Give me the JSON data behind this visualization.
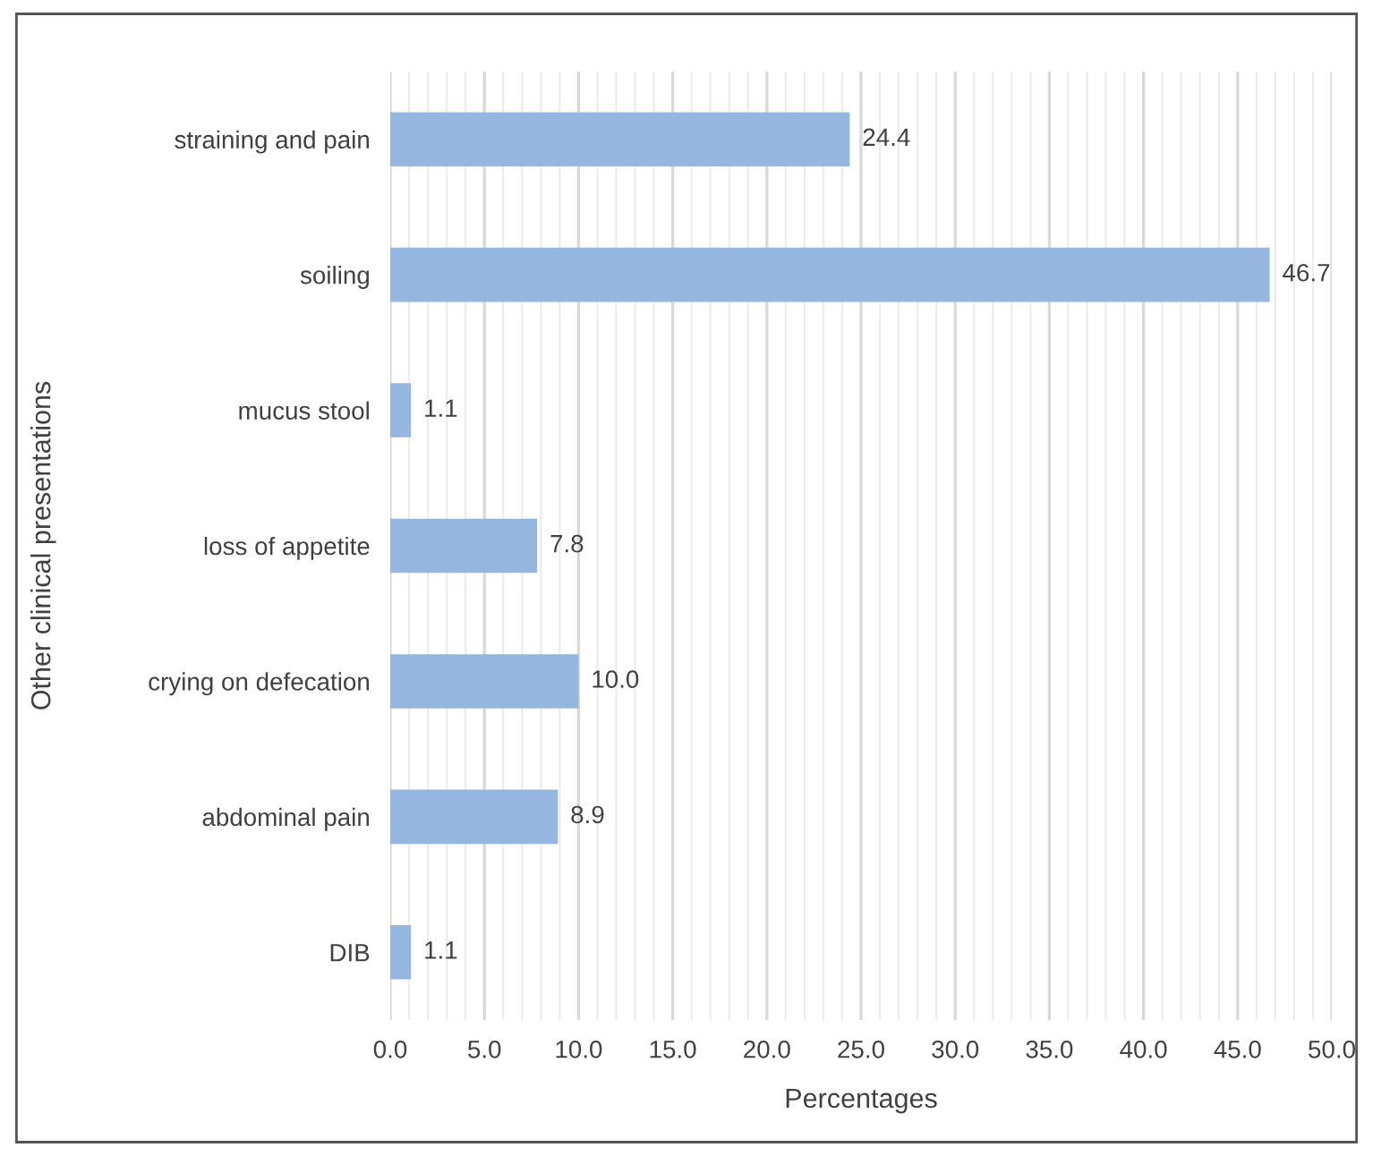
{
  "chart_data": {
    "type": "bar",
    "orientation": "horizontal",
    "xlabel": "Percentages",
    "ylabel": "Other clinical presentations",
    "categories": [
      "straining and pain",
      "soiling",
      "mucus stool",
      "loss of appetite",
      "crying on defecation",
      "abdominal pain",
      "DIB"
    ],
    "values": [
      24.4,
      46.7,
      1.1,
      7.8,
      10.0,
      8.9,
      1.1
    ],
    "value_labels": [
      "24.4",
      "46.7",
      "1.1",
      "7.8",
      "10.0",
      "8.9",
      "1.1"
    ],
    "color": "#95b7df",
    "xlim": [
      0,
      50
    ],
    "xticks": [
      {
        "value": 0,
        "label": "0.0"
      },
      {
        "value": 1,
        "label": null
      },
      {
        "value": 2,
        "label": null
      },
      {
        "value": 3,
        "label": null
      },
      {
        "value": 4,
        "label": null
      },
      {
        "value": 5,
        "label": "5.0"
      },
      {
        "value": 6,
        "label": null
      },
      {
        "value": 7,
        "label": null
      },
      {
        "value": 8,
        "label": null
      },
      {
        "value": 9,
        "label": null
      },
      {
        "value": 10,
        "label": "10.0"
      },
      {
        "value": 11,
        "label": null
      },
      {
        "value": 12,
        "label": null
      },
      {
        "value": 13,
        "label": null
      },
      {
        "value": 14,
        "label": null
      },
      {
        "value": 15,
        "label": "15.0"
      },
      {
        "value": 16,
        "label": null
      },
      {
        "value": 17,
        "label": null
      },
      {
        "value": 18,
        "label": null
      },
      {
        "value": 19,
        "label": null
      },
      {
        "value": 20,
        "label": "20.0"
      },
      {
        "value": 21,
        "label": null
      },
      {
        "value": 22,
        "label": null
      },
      {
        "value": 23,
        "label": null
      },
      {
        "value": 24,
        "label": null
      },
      {
        "value": 25,
        "label": "25.0"
      },
      {
        "value": 26,
        "label": null
      },
      {
        "value": 27,
        "label": null
      },
      {
        "value": 28,
        "label": null
      },
      {
        "value": 29,
        "label": null
      },
      {
        "value": 30,
        "label": "30.0"
      },
      {
        "value": 31,
        "label": null
      },
      {
        "value": 32,
        "label": null
      },
      {
        "value": 33,
        "label": null
      },
      {
        "value": 34,
        "label": null
      },
      {
        "value": 35,
        "label": "35.0"
      },
      {
        "value": 36,
        "label": null
      },
      {
        "value": 37,
        "label": null
      },
      {
        "value": 38,
        "label": null
      },
      {
        "value": 39,
        "label": null
      },
      {
        "value": 40,
        "label": "40.0"
      },
      {
        "value": 41,
        "label": null
      },
      {
        "value": 42,
        "label": null
      },
      {
        "value": 43,
        "label": null
      },
      {
        "value": 44,
        "label": null
      },
      {
        "value": 45,
        "label": "45.0"
      },
      {
        "value": 46,
        "label": null
      },
      {
        "value": 47,
        "label": null
      },
      {
        "value": 48,
        "label": null
      },
      {
        "value": 49,
        "label": null
      },
      {
        "value": 50,
        "label": "50.0"
      }
    ],
    "grid": "x",
    "legend": false
  }
}
